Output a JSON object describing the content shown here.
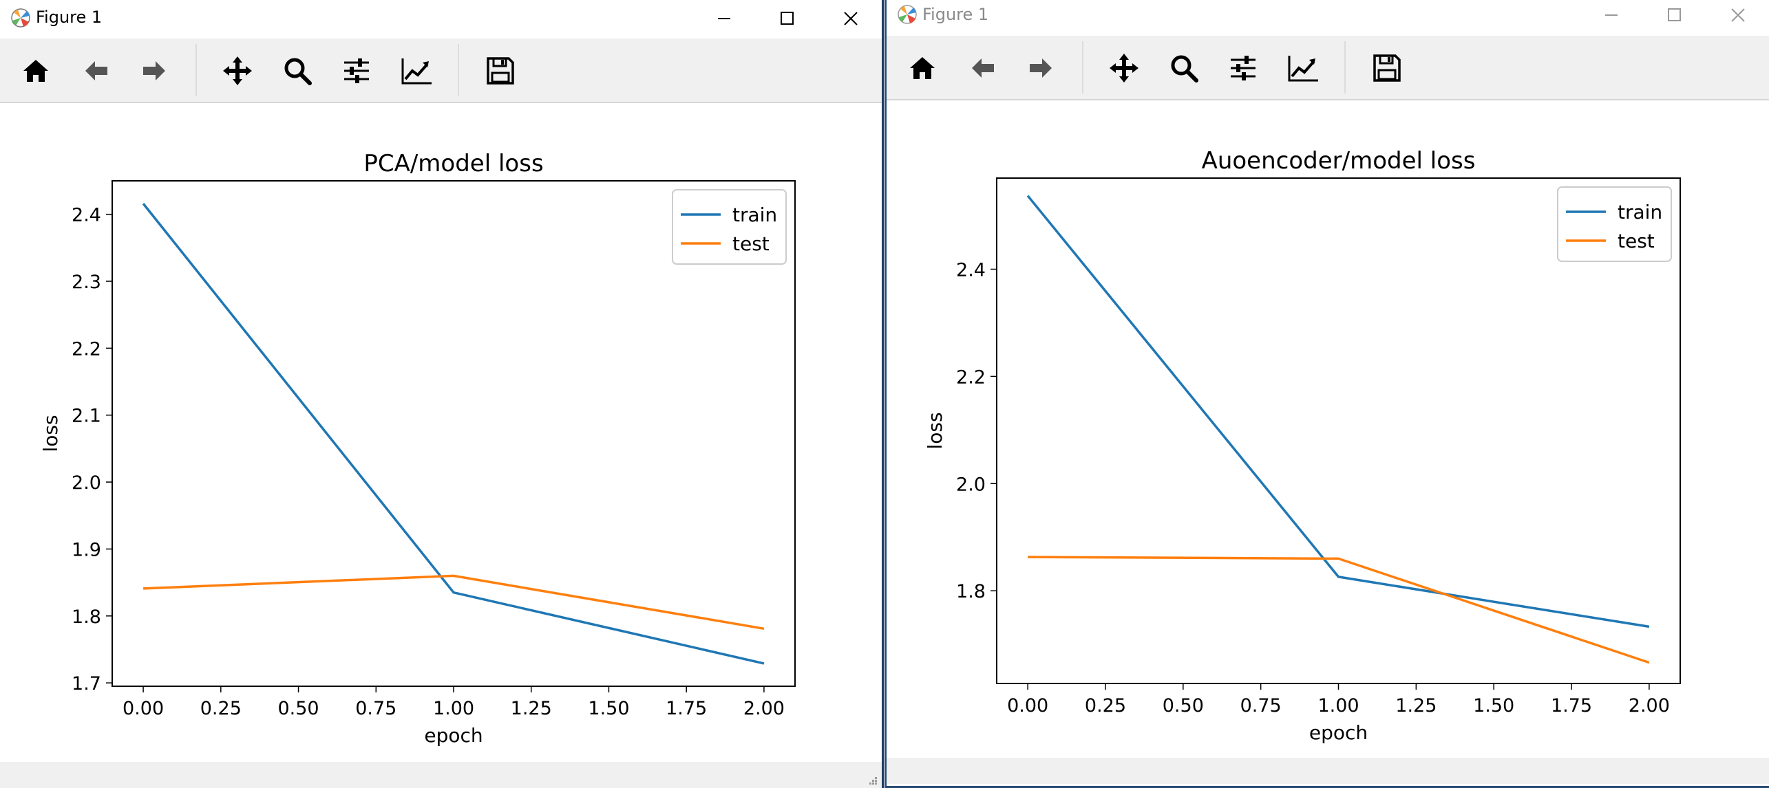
{
  "windows": [
    {
      "id": "win1",
      "title": "Figure 1",
      "toolbar": [
        "home",
        "back",
        "forward",
        "pan",
        "zoom",
        "configure-subplots",
        "edit-axis",
        "save"
      ],
      "chart_data": {
        "type": "line",
        "title": "PCA/model loss",
        "xlabel": "epoch",
        "ylabel": "loss",
        "x": [
          0,
          1,
          2
        ],
        "xlim": [
          -0.1,
          2.1
        ],
        "ylim": [
          1.695,
          2.45
        ],
        "xticks": [
          0,
          0.25,
          0.5,
          0.75,
          1,
          1.25,
          1.5,
          1.75,
          2
        ],
        "xtick_labels": [
          "0.00",
          "0.25",
          "0.50",
          "0.75",
          "1.00",
          "1.25",
          "1.50",
          "1.75",
          "2.00"
        ],
        "yticks": [
          1.7,
          1.8,
          1.9,
          2.0,
          2.1,
          2.2,
          2.3,
          2.4
        ],
        "ytick_labels": [
          "1.7",
          "1.8",
          "1.9",
          "2.0",
          "2.1",
          "2.2",
          "2.3",
          "2.4"
        ],
        "series": [
          {
            "name": "train",
            "color": "#1f77b4",
            "values": [
              2.416,
              1.835,
              1.729
            ]
          },
          {
            "name": "test",
            "color": "#ff7f0e",
            "values": [
              1.841,
              1.86,
              1.781
            ]
          }
        ],
        "legend_position": "top-right",
        "grid": false
      }
    },
    {
      "id": "win2",
      "title": "Figure 1",
      "toolbar": [
        "home",
        "back",
        "forward",
        "pan",
        "zoom",
        "configure-subplots",
        "edit-axis",
        "save"
      ],
      "chart_data": {
        "type": "line",
        "title": "Auoencoder/model loss",
        "xlabel": "epoch",
        "ylabel": "loss",
        "x": [
          0,
          1,
          2
        ],
        "xlim": [
          -0.1,
          2.1
        ],
        "ylim": [
          1.627,
          2.57
        ],
        "xticks": [
          0,
          0.25,
          0.5,
          0.75,
          1,
          1.25,
          1.5,
          1.75,
          2
        ],
        "xtick_labels": [
          "0.00",
          "0.25",
          "0.50",
          "0.75",
          "1.00",
          "1.25",
          "1.50",
          "1.75",
          "2.00"
        ],
        "yticks": [
          1.8,
          2.0,
          2.2,
          2.4
        ],
        "ytick_labels": [
          "1.8",
          "2.0",
          "2.2",
          "2.4"
        ],
        "series": [
          {
            "name": "train",
            "color": "#1f77b4",
            "values": [
              2.537,
              1.826,
              1.733
            ]
          },
          {
            "name": "test",
            "color": "#ff7f0e",
            "values": [
              1.863,
              1.86,
              1.666
            ]
          }
        ],
        "legend_position": "top-right",
        "grid": false
      }
    }
  ]
}
